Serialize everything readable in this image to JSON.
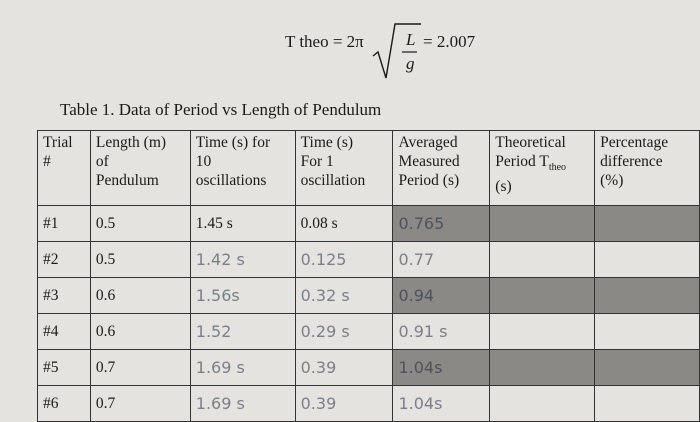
{
  "formula": {
    "lhs": "T theo = 2π",
    "numerator": "L",
    "denominator": "g",
    "result": "= 2.007"
  },
  "table": {
    "caption": "Table 1. Data of Period vs Length of Pendulum",
    "headers": [
      [
        "Trial",
        "#"
      ],
      [
        "Length (m)",
        "of",
        "Pendulum"
      ],
      [
        "Time (s) for",
        "10",
        "oscillations"
      ],
      [
        "Time (s)",
        "For 1",
        "oscillation"
      ],
      [
        "Averaged",
        "Measured",
        "Period (s)"
      ],
      [
        "Theoretical",
        "Period T",
        "(s)"
      ],
      [
        "Percentage",
        "difference",
        "(%)"
      ]
    ],
    "theo_subscript": "theo",
    "rows": [
      [
        "#1",
        "0.5",
        "1.45 s",
        "0.08 s",
        "0.765"
      ],
      [
        "#2",
        "0.5",
        "1.42 s",
        "0.125",
        "0.77"
      ],
      [
        "#3",
        "0.6",
        "1.56s",
        "0.32 s",
        "0.94"
      ],
      [
        "#4",
        "0.6",
        "1.52",
        "0.29 s",
        "0.91 s"
      ],
      [
        "#5",
        "0.7",
        "1.69 s",
        "0.39",
        "1.04s"
      ],
      [
        "#6",
        "0.7",
        "1.69 s",
        "0.39",
        "1.04s"
      ]
    ]
  }
}
